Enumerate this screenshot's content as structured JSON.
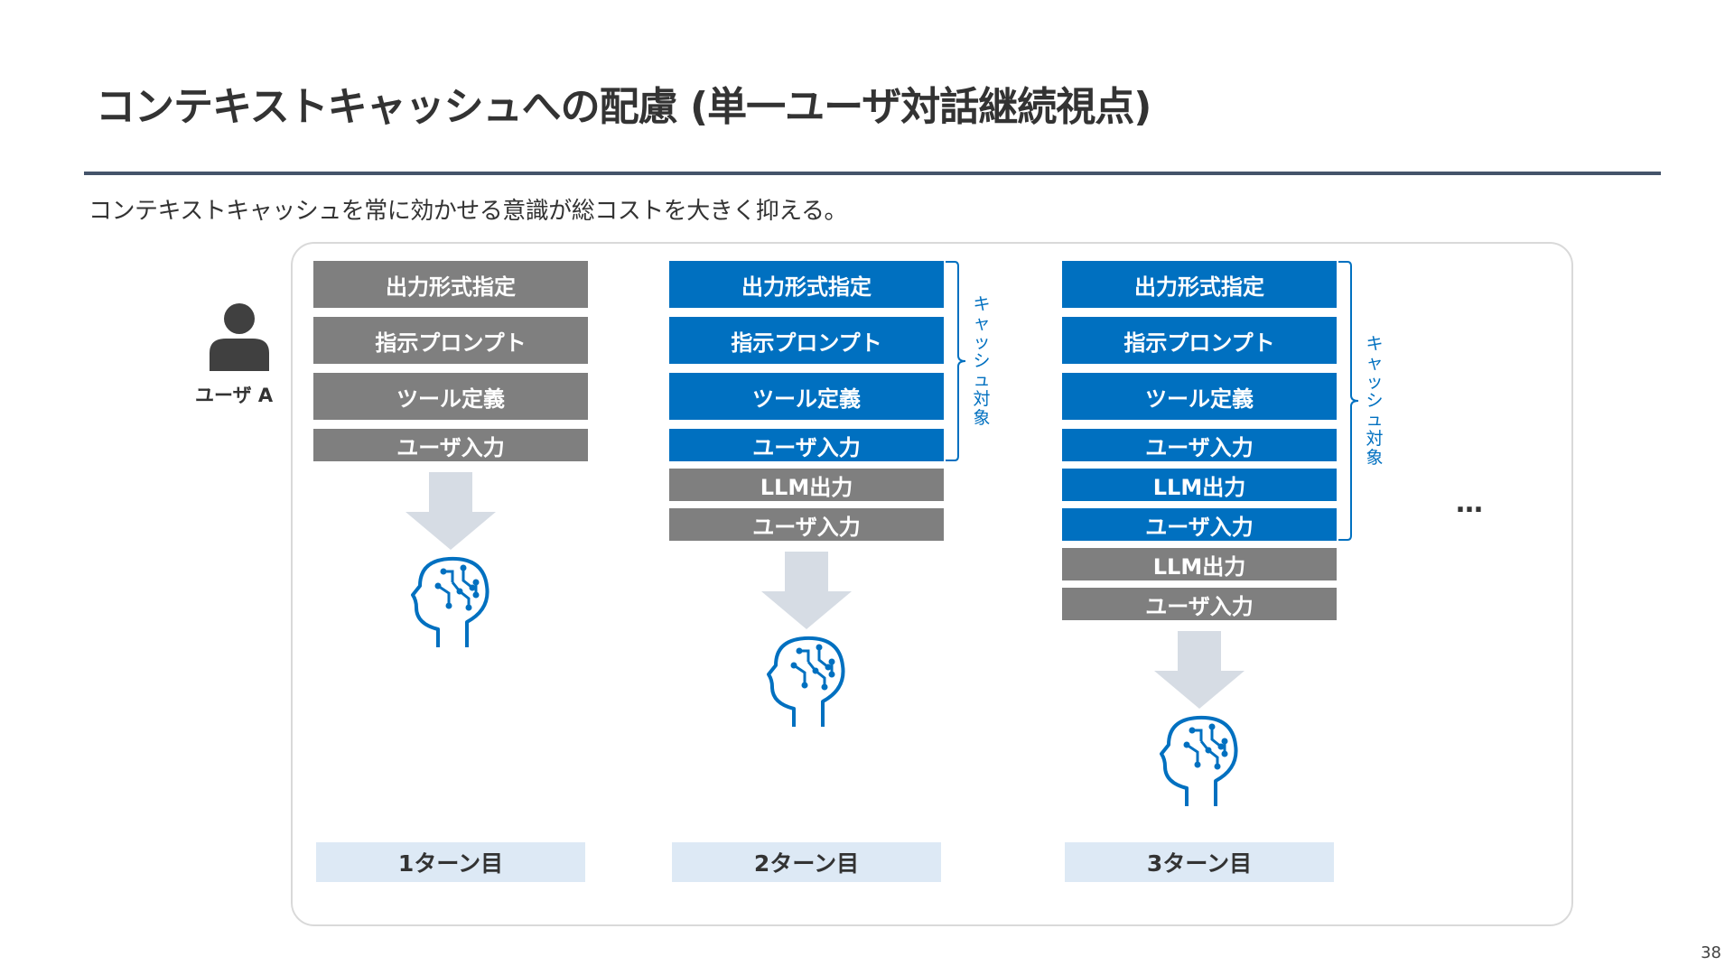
{
  "title": "コンテキストキャッシュへの配慮 (単一ユーザ対話継続視点)",
  "subtitle": "コンテキストキャッシュを常に効かせる意識が総コストを大きく抑える。",
  "user_label": "ユーザ A",
  "turns": [
    {
      "label": "1ターン目",
      "blocks": [
        "出力形式指定",
        "指示プロンプト",
        "ツール定義",
        "ユーザ入力"
      ],
      "cached_count": 0
    },
    {
      "label": "2ターン目",
      "blocks": [
        "出力形式指定",
        "指示プロンプト",
        "ツール定義",
        "ユーザ入力",
        "LLM出力",
        "ユーザ入力"
      ],
      "cached_count": 4
    },
    {
      "label": "3ターン目",
      "blocks": [
        "出力形式指定",
        "指示プロンプト",
        "ツール定義",
        "ユーザ入力",
        "LLM出力",
        "ユーザ入力",
        "LLM出力",
        "ユーザ入力"
      ],
      "cached_count": 6
    }
  ],
  "cache_label": "キャッシュ対象",
  "ellipsis": "…",
  "page_number": "38",
  "colors": {
    "cached": "#0070c0",
    "uncached": "#7f7f7f",
    "turn_bg": "#dde9f5",
    "arrow": "#d6dce4",
    "rule": "#44546a"
  },
  "icons": {
    "user": "person-icon",
    "arrow": "down-arrow-icon",
    "llm": "ai-brain-head-icon"
  }
}
